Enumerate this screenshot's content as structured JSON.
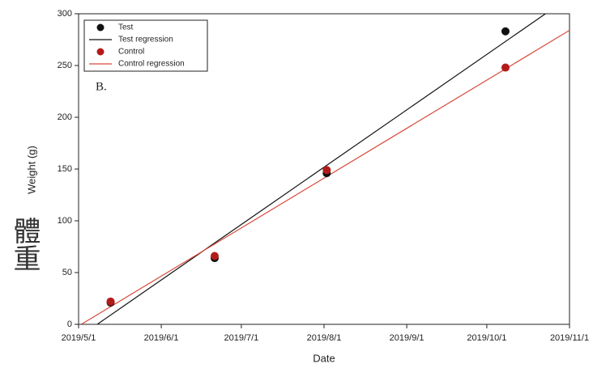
{
  "chart_data": {
    "type": "scatter",
    "x_label": "Date",
    "y_label": "Weight (g)",
    "annotation": "B.",
    "side_label": "體重",
    "xlim": [
      "2019/5/1",
      "2019/11/1"
    ],
    "xticks": [
      "2019/5/1",
      "2019/6/1",
      "2019/7/1",
      "2019/8/1",
      "2019/9/1",
      "2019/10/1",
      "2019/11/1"
    ],
    "ylim": [
      0,
      300
    ],
    "yticks": [
      0,
      50,
      100,
      150,
      200,
      250,
      300
    ],
    "legend": "top-left",
    "series": [
      {
        "name": "Test",
        "color": "#111111",
        "mode": "markers",
        "x": [
          "2019/5/13",
          "2019/6/21",
          "2019/8/2",
          "2019/10/8"
        ],
        "values": [
          21,
          64,
          146,
          283
        ]
      },
      {
        "name": "Test regression",
        "color": "#111111",
        "mode": "line",
        "x": [
          "2019/5/8",
          "2019/10/23"
        ],
        "values": [
          0,
          300
        ]
      },
      {
        "name": "Control",
        "color": "#b31b1b",
        "mode": "markers",
        "x": [
          "2019/5/13",
          "2019/6/21",
          "2019/8/2",
          "2019/10/8"
        ],
        "values": [
          22,
          66,
          149,
          248
        ]
      },
      {
        "name": "Control regression",
        "color": "#d84a3a",
        "mode": "line",
        "x": [
          "2019/5/2",
          "2019/11/1"
        ],
        "values": [
          0,
          284
        ]
      }
    ]
  }
}
